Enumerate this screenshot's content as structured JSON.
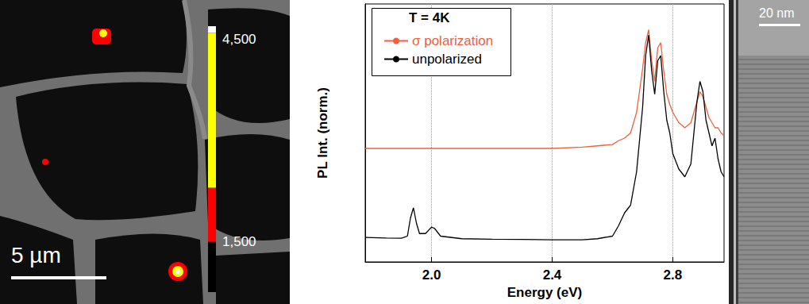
{
  "chart_data": [
    {
      "type": "image",
      "annotations": [
        "5 µm"
      ],
      "colorbar": {
        "range": [
          750,
          4700
        ],
        "ticks": [
          1500,
          4500
        ],
        "bins": [
          750,
          1500,
          2300,
          4600,
          4700
        ],
        "colors": [
          "#000000",
          "#ff0000",
          "#ffff00",
          "#ffffff"
        ]
      }
    },
    {
      "type": "line",
      "annotations": [
        "T = 4K"
      ],
      "x_label": "Energy (eV)",
      "y_label": "PL Int. (norm.)",
      "xlim": [
        1.78,
        2.97
      ],
      "xticks": [
        {
          "value": 2,
          "label": "2.0"
        },
        2.4,
        2.8
      ],
      "ylim": [
        0,
        1
      ],
      "tick_labels": "x",
      "grid": true,
      "legend": "upper left",
      "x": [
        1.78,
        1.85,
        1.9,
        1.92,
        1.93,
        1.94,
        1.95,
        1.96,
        1.98,
        2.0,
        2.01,
        2.03,
        2.1,
        2.2,
        2.3,
        2.4,
        2.5,
        2.55,
        2.6,
        2.62,
        2.64,
        2.66,
        2.68,
        2.7,
        2.71,
        2.72,
        2.73,
        2.74,
        2.75,
        2.76,
        2.77,
        2.78,
        2.79,
        2.8,
        2.82,
        2.84,
        2.86,
        2.88,
        2.89,
        2.9,
        2.91,
        2.92,
        2.93,
        2.94,
        2.95,
        2.96,
        2.97
      ],
      "series": [
        {
          "name": "σ polarization",
          "color": "#f0603c",
          "values": [
            0.44,
            0.44,
            0.44,
            0.44,
            0.44,
            0.44,
            0.44,
            0.44,
            0.44,
            0.44,
            0.44,
            0.44,
            0.44,
            0.44,
            0.44,
            0.44,
            0.445,
            0.45,
            0.455,
            0.47,
            0.48,
            0.5,
            0.58,
            0.75,
            0.85,
            0.9,
            0.78,
            0.7,
            0.83,
            0.85,
            0.74,
            0.65,
            0.61,
            0.58,
            0.54,
            0.52,
            0.54,
            0.62,
            0.66,
            0.64,
            0.6,
            0.56,
            0.54,
            0.52,
            0.52,
            0.5,
            0.49
          ]
        },
        {
          "name": "unpolarized",
          "color": "#000000",
          "values": [
            0.095,
            0.093,
            0.092,
            0.1,
            0.17,
            0.21,
            0.15,
            0.11,
            0.11,
            0.135,
            0.13,
            0.1,
            0.09,
            0.088,
            0.087,
            0.086,
            0.086,
            0.09,
            0.1,
            0.14,
            0.19,
            0.22,
            0.35,
            0.6,
            0.8,
            0.88,
            0.74,
            0.65,
            0.78,
            0.8,
            0.66,
            0.55,
            0.5,
            0.42,
            0.36,
            0.33,
            0.38,
            0.62,
            0.7,
            0.66,
            0.55,
            0.5,
            0.45,
            0.48,
            0.4,
            0.35,
            0.33
          ]
        }
      ]
    },
    {
      "type": "image",
      "annotations": [
        "20 nm"
      ]
    }
  ]
}
